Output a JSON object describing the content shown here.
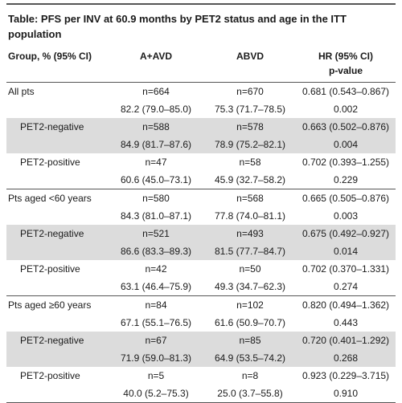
{
  "title": "Table: PFS per INV at 60.9 months by PET2 status and age in the ITT population",
  "headers": {
    "group": "Group, % (95% CI)",
    "aavd": "A+AVD",
    "abvd": "ABVD",
    "hr_line1": "HR (95% CI)",
    "hr_line2": "p-value"
  },
  "rows": [
    {
      "label": "All pts",
      "aavd_n": "n=664",
      "abvd_n": "n=670",
      "hr": "0.681 (0.543–0.867)",
      "aavd_pct": "82.2 (79.0–85.0)",
      "abvd_pct": "75.3 (71.7–78.5)",
      "p": "0.002"
    },
    {
      "label": "PET2-negative",
      "aavd_n": "n=588",
      "abvd_n": "n=578",
      "hr": "0.663 (0.502–0.876)",
      "aavd_pct": "84.9 (81.7–87.6)",
      "abvd_pct": "78.9 (75.2–82.1)",
      "p": "0.004"
    },
    {
      "label": "PET2-positive",
      "aavd_n": "n=47",
      "abvd_n": "n=58",
      "hr": "0.702 (0.393–1.255)",
      "aavd_pct": "60.6 (45.0–73.1)",
      "abvd_pct": "45.9 (32.7–58.2)",
      "p": "0.229"
    },
    {
      "label": "Pts aged <60 years",
      "aavd_n": "n=580",
      "abvd_n": "n=568",
      "hr": "0.665 (0.505–0.876)",
      "aavd_pct": "84.3 (81.0–87.1)",
      "abvd_pct": "77.8 (74.0–81.1)",
      "p": "0.003"
    },
    {
      "label": "PET2-negative",
      "aavd_n": "n=521",
      "abvd_n": "n=493",
      "hr": "0.675 (0.492–0.927)",
      "aavd_pct": "86.6 (83.3–89.3)",
      "abvd_pct": "81.5 (77.7–84.7)",
      "p": "0.014"
    },
    {
      "label": "PET2-positive",
      "aavd_n": "n=42",
      "abvd_n": "n=50",
      "hr": "0.702 (0.370–1.331)",
      "aavd_pct": "63.1 (46.4–75.9)",
      "abvd_pct": "49.3 (34.7–62.3)",
      "p": "0.274"
    },
    {
      "label": "Pts aged ≥60 years",
      "aavd_n": "n=84",
      "abvd_n": "n=102",
      "hr": "0.820 (0.494–1.362)",
      "aavd_pct": "67.1 (55.1–76.5)",
      "abvd_pct": "61.6 (50.9–70.7)",
      "p": "0.443"
    },
    {
      "label": "PET2-negative",
      "aavd_n": "n=67",
      "abvd_n": "n=85",
      "hr": "0.720 (0.401–1.292)",
      "aavd_pct": "71.9 (59.0–81.3)",
      "abvd_pct": "64.9 (53.5–74.2)",
      "p": "0.268"
    },
    {
      "label": "PET2-positive",
      "aavd_n": "n=5",
      "abvd_n": "n=8",
      "hr": "0.923 (0.229–3.715)",
      "aavd_pct": "40.0 (5.2–75.3)",
      "abvd_pct": "25.0 (3.7–55.8)",
      "p": "0.910"
    }
  ]
}
